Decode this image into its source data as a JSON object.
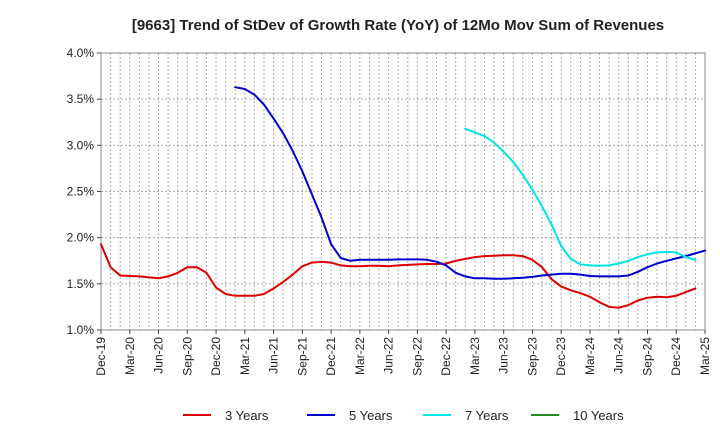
{
  "chart_data": {
    "type": "line",
    "title": "[9663]  Trend of StDev of Growth Rate (YoY) of 12Mo Mov Sum of Revenues",
    "xlabel": "",
    "ylabel": "",
    "ylim": [
      1.0,
      4.0
    ],
    "yticks": [
      {
        "value": 1.0,
        "label": "1.0%"
      },
      {
        "value": 1.5,
        "label": "1.5%"
      },
      {
        "value": 2.0,
        "label": "2.0%"
      },
      {
        "value": 2.5,
        "label": "2.5%"
      },
      {
        "value": 3.0,
        "label": "3.0%"
      },
      {
        "value": 3.5,
        "label": "3.5%"
      },
      {
        "value": 4.0,
        "label": "4.0%"
      }
    ],
    "xticks": [
      "Dec-19",
      "Mar-20",
      "Jun-20",
      "Sep-20",
      "Dec-20",
      "Mar-21",
      "Jun-21",
      "Sep-21",
      "Dec-21",
      "Mar-22",
      "Jun-22",
      "Sep-22",
      "Dec-22",
      "Mar-23",
      "Jun-23",
      "Sep-23",
      "Dec-23",
      "Mar-24",
      "Jun-24",
      "Sep-24",
      "Dec-24",
      "Mar-25"
    ],
    "x_start": "Dec-19",
    "x_end": "Mar-25",
    "grid": true,
    "legend_position": "bottom",
    "series": [
      {
        "name": "3 Years",
        "color": "#dd0000",
        "start_month_index": 0,
        "values": [
          1.93,
          1.68,
          1.59,
          1.585,
          1.58,
          1.57,
          1.56,
          1.58,
          1.62,
          1.68,
          1.68,
          1.62,
          1.46,
          1.39,
          1.37,
          1.37,
          1.37,
          1.39,
          1.45,
          1.52,
          1.6,
          1.69,
          1.73,
          1.74,
          1.73,
          1.7,
          1.69,
          1.69,
          1.695,
          1.695,
          1.69,
          1.7,
          1.705,
          1.71,
          1.715,
          1.715,
          1.72,
          1.75,
          1.77,
          1.79,
          1.8,
          1.805,
          1.81,
          1.81,
          1.8,
          1.76,
          1.68,
          1.55,
          1.47,
          1.43,
          1.4,
          1.36,
          1.3,
          1.25,
          1.24,
          1.27,
          1.32,
          1.35,
          1.36,
          1.355,
          1.37,
          1.41,
          1.45
        ]
      },
      {
        "name": "5 Years",
        "color": "#0000cc",
        "start_month_index": 14,
        "values": [
          3.63,
          3.61,
          3.55,
          3.44,
          3.29,
          3.13,
          2.94,
          2.72,
          2.47,
          2.22,
          1.93,
          1.78,
          1.75,
          1.76,
          1.76,
          1.76,
          1.76,
          1.765,
          1.765,
          1.765,
          1.76,
          1.74,
          1.7,
          1.62,
          1.58,
          1.56,
          1.56,
          1.555,
          1.555,
          1.56,
          1.565,
          1.575,
          1.59,
          1.6,
          1.61,
          1.61,
          1.6,
          1.585,
          1.58,
          1.58,
          1.58,
          1.59,
          1.63,
          1.68,
          1.72,
          1.75,
          1.775,
          1.8,
          1.83,
          1.86
        ]
      },
      {
        "name": "7 Years",
        "color": "#00e5e5",
        "start_month_index": 38,
        "values": [
          3.18,
          3.14,
          3.1,
          3.03,
          2.93,
          2.82,
          2.68,
          2.52,
          2.34,
          2.14,
          1.91,
          1.77,
          1.71,
          1.7,
          1.695,
          1.7,
          1.72,
          1.75,
          1.79,
          1.82,
          1.84,
          1.845,
          1.84,
          1.79,
          1.76
        ]
      },
      {
        "name": "10 Years",
        "color": "#228b22",
        "start_month_index": 0,
        "values": []
      }
    ]
  }
}
